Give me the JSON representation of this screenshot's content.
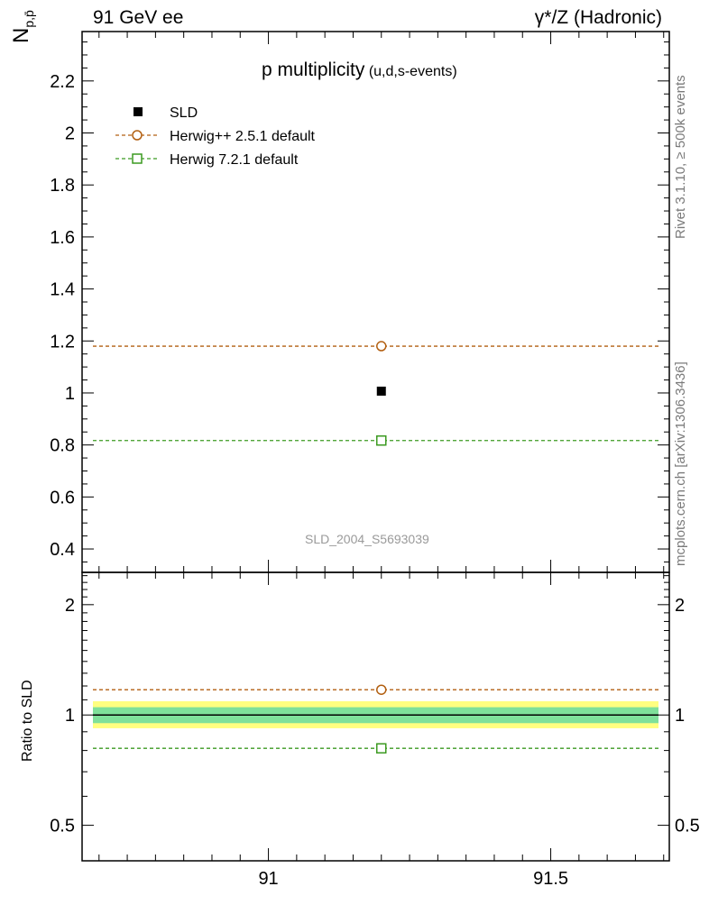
{
  "header": {
    "left": "91 GeV ee",
    "right": "γ*/Z (Hadronic)"
  },
  "notes": {
    "rivet": "Rivet 3.1.10, ≥ 500k events",
    "mcplots": "mcplots.cern.ch [arXiv:1306.3436]",
    "analysis": "SLD_2004_S5693039"
  },
  "chart_data": [
    {
      "type": "scatter",
      "title": "p multiplicity",
      "subtitle": "(u,d,s-events)",
      "ylabel": "N_{p,p̄}",
      "xlim": [
        90.67,
        91.71
      ],
      "ylim": [
        0.31,
        2.39
      ],
      "x_ticks": [
        91,
        91.5
      ],
      "y_ticks": [
        0.4,
        0.6,
        0.8,
        1,
        1.2,
        1.4,
        1.6,
        1.8,
        2,
        2.2
      ],
      "y_tick_labels": [
        "0.4",
        "0.6",
        "0.8",
        "1",
        "1.2",
        "1.4",
        "1.6",
        "1.8",
        "2",
        "2.2"
      ],
      "legend_position": "top-left",
      "series": [
        {
          "name": "SLD",
          "style": "data-square",
          "color": "#000000",
          "x": [
            91.2
          ],
          "y": [
            1.007
          ],
          "line": false
        },
        {
          "name": "Herwig++ 2.5.1 default",
          "style": "open-circle-dashed",
          "color": "#b25f10",
          "x": [
            91.2
          ],
          "y": [
            1.18
          ],
          "line": true
        },
        {
          "name": "Herwig 7.2.1 default",
          "style": "open-square-dashed",
          "color": "#3b9a20",
          "x": [
            91.2
          ],
          "y": [
            0.817
          ],
          "line": true
        }
      ]
    },
    {
      "type": "scatter",
      "ylabel": "Ratio to SLD",
      "xlim": [
        90.67,
        91.71
      ],
      "ylim": [
        0.4,
        2.45
      ],
      "y_scale": "log",
      "x_ticks": [
        91,
        91.5
      ],
      "x_tick_labels": [
        "91",
        "91.5"
      ],
      "y_ticks": [
        0.5,
        1,
        2
      ],
      "y_tick_labels": [
        "0.5",
        "1",
        "2"
      ],
      "band": {
        "inner": [
          0.95,
          1.05
        ],
        "outer": [
          0.92,
          1.09
        ],
        "inner_color": "#7fe09a",
        "outer_color": "#ffff80"
      },
      "series": [
        {
          "name": "Herwig++ 2.5.1 default",
          "style": "open-circle-dashed",
          "color": "#b25f10",
          "x": [
            91.2
          ],
          "y": [
            1.172
          ],
          "line": true
        },
        {
          "name": "Herwig 7.2.1 default",
          "style": "open-square-dashed",
          "color": "#3b9a20",
          "x": [
            91.2
          ],
          "y": [
            0.811
          ],
          "line": true
        }
      ]
    }
  ]
}
